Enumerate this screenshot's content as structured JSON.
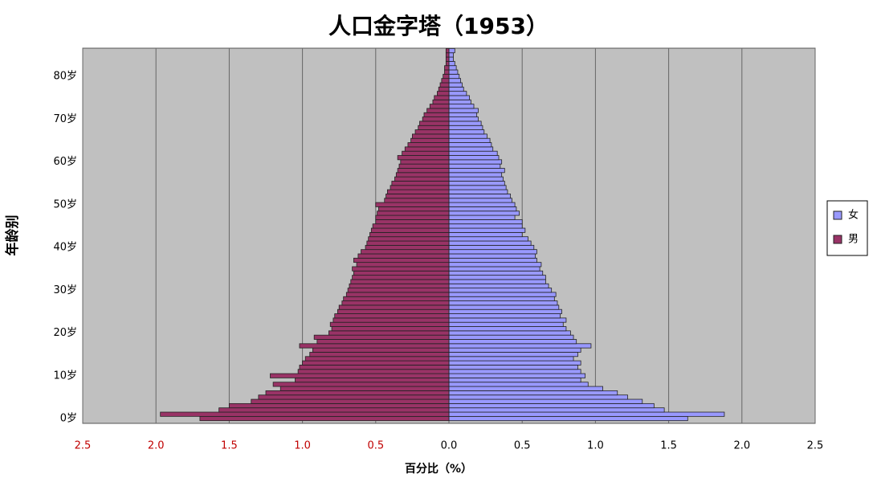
{
  "chart_data": {
    "type": "pyramid",
    "title": "人口金字塔（1953）",
    "x_label": "百分比（%）",
    "y_label": "年龄别",
    "categories": [
      "0岁",
      null,
      null,
      null,
      null,
      null,
      null,
      null,
      null,
      null,
      "10岁",
      null,
      null,
      null,
      null,
      null,
      null,
      null,
      null,
      null,
      "20岁",
      null,
      null,
      null,
      null,
      null,
      null,
      null,
      null,
      null,
      "30岁",
      null,
      null,
      null,
      null,
      null,
      null,
      null,
      null,
      null,
      "40岁",
      null,
      null,
      null,
      null,
      null,
      null,
      null,
      null,
      null,
      "50岁",
      null,
      null,
      null,
      null,
      null,
      null,
      null,
      null,
      null,
      "60岁",
      null,
      null,
      null,
      null,
      null,
      null,
      null,
      null,
      null,
      "70岁",
      null,
      null,
      null,
      null,
      null,
      null,
      null,
      null,
      null,
      "80岁",
      null,
      null,
      null,
      null,
      null,
      null
    ],
    "series": [
      {
        "name": "女",
        "color": "#9999ff",
        "values": [
          1.63,
          1.88,
          1.47,
          1.4,
          1.32,
          1.22,
          1.15,
          1.05,
          0.95,
          0.9,
          0.93,
          0.9,
          0.88,
          0.9,
          0.85,
          0.88,
          0.9,
          0.97,
          0.87,
          0.85,
          0.83,
          0.8,
          0.78,
          0.8,
          0.76,
          0.77,
          0.75,
          0.74,
          0.72,
          0.73,
          0.7,
          0.68,
          0.66,
          0.66,
          0.64,
          0.62,
          0.63,
          0.6,
          0.59,
          0.6,
          0.58,
          0.56,
          0.54,
          0.5,
          0.52,
          0.5,
          0.5,
          0.45,
          0.48,
          0.46,
          0.45,
          0.43,
          0.42,
          0.4,
          0.39,
          0.38,
          0.37,
          0.36,
          0.38,
          0.35,
          0.36,
          0.34,
          0.33,
          0.3,
          0.29,
          0.28,
          0.26,
          0.24,
          0.23,
          0.22,
          0.2,
          0.19,
          0.2,
          0.17,
          0.15,
          0.14,
          0.12,
          0.1,
          0.09,
          0.08,
          0.07,
          0.06,
          0.05,
          0.04,
          0.03,
          0.03,
          0.04
        ]
      },
      {
        "name": "男",
        "color": "#993366",
        "values": [
          -1.7,
          -1.97,
          -1.57,
          -1.5,
          -1.35,
          -1.3,
          -1.25,
          -1.15,
          -1.2,
          -1.05,
          -1.22,
          -1.03,
          -1.02,
          -1.0,
          -0.98,
          -0.95,
          -0.93,
          -1.02,
          -0.9,
          -0.92,
          -0.82,
          -0.8,
          -0.81,
          -0.79,
          -0.78,
          -0.76,
          -0.75,
          -0.73,
          -0.72,
          -0.7,
          -0.69,
          -0.68,
          -0.67,
          -0.66,
          -0.65,
          -0.66,
          -0.63,
          -0.65,
          -0.62,
          -0.6,
          -0.57,
          -0.56,
          -0.55,
          -0.54,
          -0.53,
          -0.52,
          -0.5,
          -0.5,
          -0.49,
          -0.48,
          -0.5,
          -0.44,
          -0.43,
          -0.42,
          -0.4,
          -0.39,
          -0.37,
          -0.36,
          -0.35,
          -0.34,
          -0.33,
          -0.35,
          -0.32,
          -0.3,
          -0.28,
          -0.26,
          -0.25,
          -0.23,
          -0.21,
          -0.2,
          -0.18,
          -0.17,
          -0.15,
          -0.13,
          -0.11,
          -0.1,
          -0.08,
          -0.07,
          -0.06,
          -0.05,
          -0.04,
          -0.03,
          -0.03,
          -0.02,
          -0.02,
          -0.02,
          -0.02
        ]
      }
    ],
    "xlim": [
      -2.5,
      2.5
    ],
    "xticks": [
      {
        "value": -2.5,
        "label": "2.5"
      },
      {
        "value": -2,
        "label": "2.0"
      },
      {
        "value": -1.5,
        "label": "1.5"
      },
      {
        "value": -1,
        "label": "1.0"
      },
      {
        "value": -0.5,
        "label": "0.5"
      },
      {
        "value": 0,
        "label": "0.0"
      },
      0.5,
      {
        "value": 1,
        "label": "1.0"
      },
      1.5,
      {
        "value": 2,
        "label": "2.0"
      },
      2.5
    ],
    "grid": true,
    "legend": "right"
  }
}
